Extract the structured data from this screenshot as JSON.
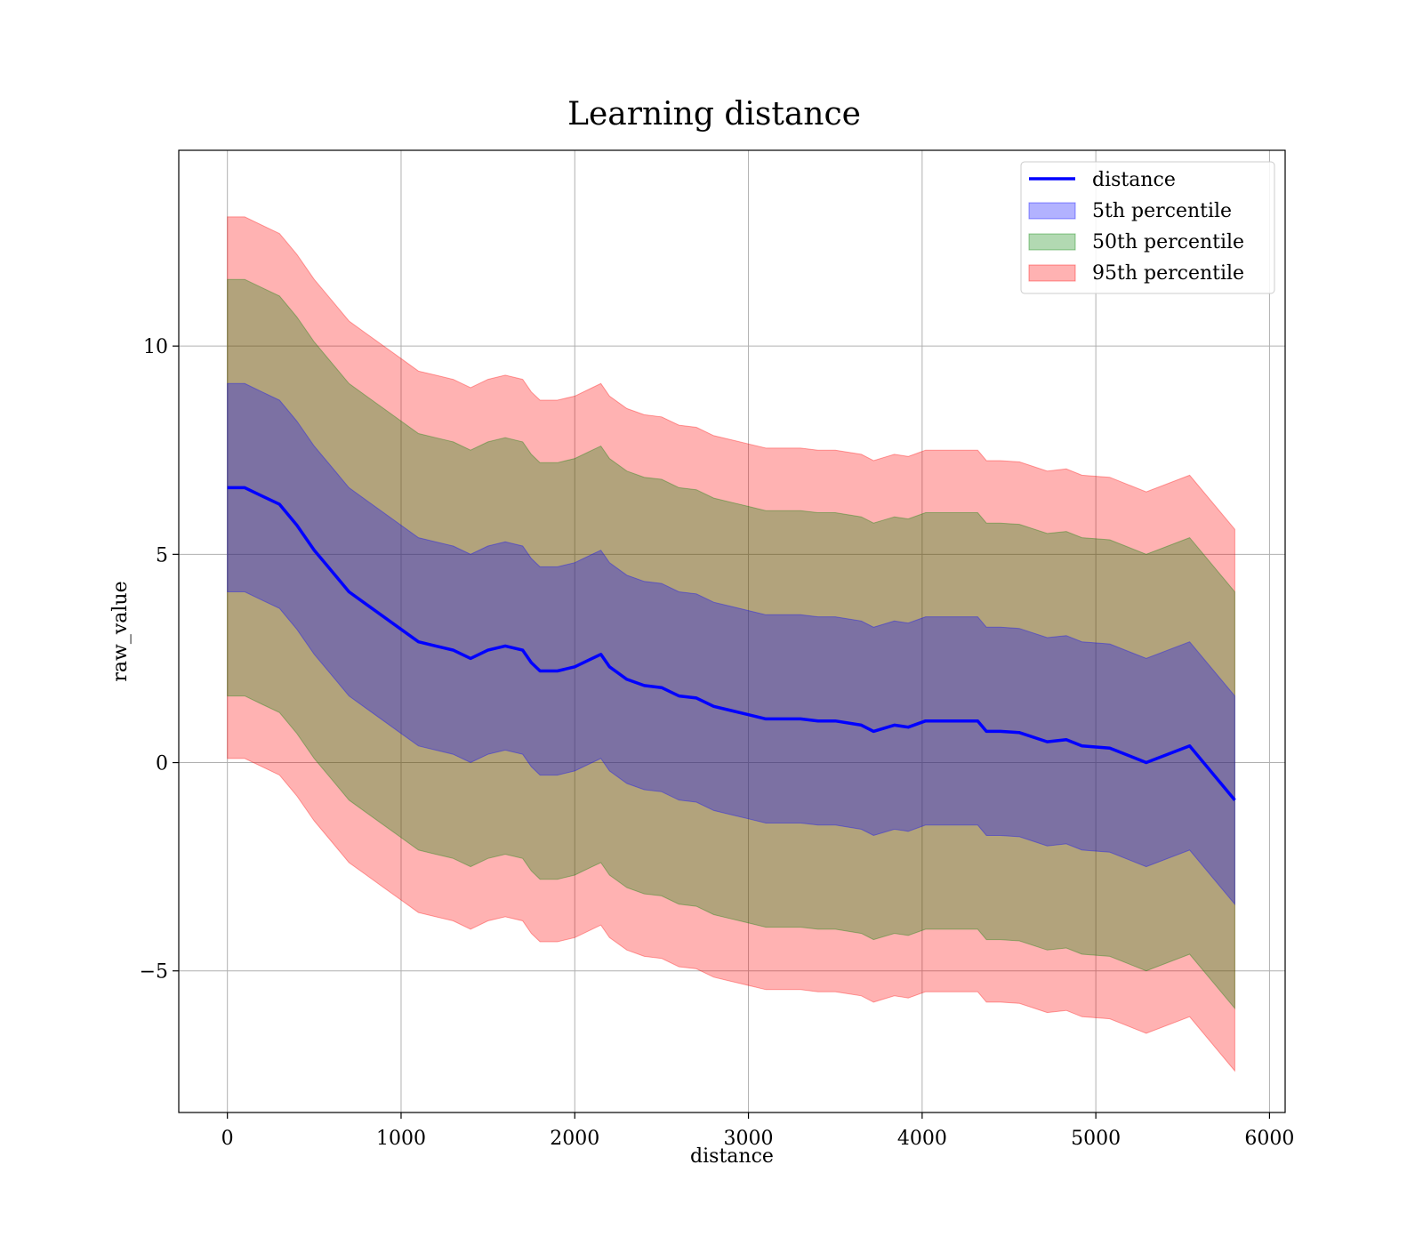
{
  "chart_data": {
    "type": "line",
    "title": "Learning distance",
    "xlabel": "distance",
    "ylabel": "raw_value",
    "xlim": [
      -280,
      6090
    ],
    "ylim": [
      -8.4,
      14.7
    ],
    "xticks": [
      0,
      1000,
      2000,
      3000,
      4000,
      5000,
      6000
    ],
    "xtick_labels": [
      "0",
      "1000",
      "2000",
      "3000",
      "4000",
      "5000",
      "6000"
    ],
    "yticks": [
      -5,
      0,
      5,
      10
    ],
    "ytick_labels": [
      "−5",
      "0",
      "5",
      "10"
    ],
    "grid": true,
    "legend_position": "top-right",
    "colors": {
      "line": "#0000ff",
      "band_5th": "#0000ff",
      "band_50th": "#008000",
      "band_95th": "#ff0000",
      "grid": "#b0b0b0"
    },
    "x": [
      0,
      100,
      200,
      300,
      400,
      500,
      600,
      700,
      800,
      900,
      1000,
      1100,
      1200,
      1300,
      1400,
      1500,
      1600,
      1700,
      1750,
      1800,
      1900,
      2000,
      2100,
      2150,
      2200,
      2300,
      2400,
      2500,
      2600,
      2700,
      2800,
      2900,
      3000,
      3100,
      3200,
      3300,
      3400,
      3500,
      3650,
      3720,
      3840,
      3920,
      4020,
      4320,
      4370,
      4450,
      4560,
      4720,
      4830,
      4920,
      5080,
      5290,
      5540,
      5800
    ],
    "series": [
      {
        "name": "distance",
        "kind": "line",
        "values": [
          6.6,
          6.6,
          6.4,
          6.2,
          5.7,
          5.1,
          4.6,
          4.1,
          3.8,
          3.5,
          3.2,
          2.9,
          2.8,
          2.7,
          2.5,
          2.7,
          2.8,
          2.7,
          2.4,
          2.2,
          2.2,
          2.3,
          2.5,
          2.6,
          2.3,
          2.0,
          1.85,
          1.8,
          1.6,
          1.55,
          1.35,
          1.25,
          1.15,
          1.05,
          1.05,
          1.05,
          1.0,
          1.0,
          0.9,
          0.75,
          0.9,
          0.85,
          1.0,
          1.0,
          0.75,
          0.75,
          0.72,
          0.5,
          0.55,
          0.4,
          0.35,
          0.0,
          0.4,
          -0.9
        ]
      },
      {
        "name": "5th percentile",
        "kind": "band",
        "upper": [
          9.1,
          9.1,
          8.9,
          8.7,
          8.2,
          7.6,
          7.1,
          6.6,
          6.3,
          6.0,
          5.7,
          5.4,
          5.3,
          5.2,
          5.0,
          5.2,
          5.3,
          5.2,
          4.9,
          4.7,
          4.7,
          4.8,
          5.0,
          5.1,
          4.8,
          4.5,
          4.35,
          4.3,
          4.1,
          4.05,
          3.85,
          3.75,
          3.65,
          3.55,
          3.55,
          3.55,
          3.5,
          3.5,
          3.4,
          3.25,
          3.4,
          3.35,
          3.5,
          3.5,
          3.25,
          3.25,
          3.22,
          3.0,
          3.05,
          2.9,
          2.85,
          2.5,
          2.9,
          1.6
        ],
        "lower": [
          4.1,
          4.1,
          3.9,
          3.7,
          3.2,
          2.6,
          2.1,
          1.6,
          1.3,
          1.0,
          0.7,
          0.4,
          0.3,
          0.2,
          0.0,
          0.2,
          0.3,
          0.2,
          -0.1,
          -0.3,
          -0.3,
          -0.2,
          0.0,
          0.1,
          -0.2,
          -0.5,
          -0.65,
          -0.7,
          -0.9,
          -0.95,
          -1.15,
          -1.25,
          -1.35,
          -1.45,
          -1.45,
          -1.45,
          -1.5,
          -1.5,
          -1.6,
          -1.75,
          -1.6,
          -1.65,
          -1.5,
          -1.5,
          -1.75,
          -1.75,
          -1.78,
          -2.0,
          -1.95,
          -2.1,
          -2.15,
          -2.5,
          -2.1,
          -3.4
        ]
      },
      {
        "name": "50th percentile",
        "kind": "band",
        "upper": [
          11.6,
          11.6,
          11.4,
          11.2,
          10.7,
          10.1,
          9.6,
          9.1,
          8.8,
          8.5,
          8.2,
          7.9,
          7.8,
          7.7,
          7.5,
          7.7,
          7.8,
          7.7,
          7.4,
          7.2,
          7.2,
          7.3,
          7.5,
          7.6,
          7.3,
          7.0,
          6.85,
          6.8,
          6.6,
          6.55,
          6.35,
          6.25,
          6.15,
          6.05,
          6.05,
          6.05,
          6.0,
          6.0,
          5.9,
          5.75,
          5.9,
          5.85,
          6.0,
          6.0,
          5.75,
          5.75,
          5.72,
          5.5,
          5.55,
          5.4,
          5.35,
          5.0,
          5.4,
          4.1
        ],
        "lower": [
          1.6,
          1.6,
          1.4,
          1.2,
          0.7,
          0.1,
          -0.4,
          -0.9,
          -1.2,
          -1.5,
          -1.8,
          -2.1,
          -2.2,
          -2.3,
          -2.5,
          -2.3,
          -2.2,
          -2.3,
          -2.6,
          -2.8,
          -2.8,
          -2.7,
          -2.5,
          -2.4,
          -2.7,
          -3.0,
          -3.15,
          -3.2,
          -3.4,
          -3.45,
          -3.65,
          -3.75,
          -3.85,
          -3.95,
          -3.95,
          -3.95,
          -4.0,
          -4.0,
          -4.1,
          -4.25,
          -4.1,
          -4.15,
          -4.0,
          -4.0,
          -4.25,
          -4.25,
          -4.28,
          -4.5,
          -4.45,
          -4.6,
          -4.65,
          -5.0,
          -4.6,
          -5.9
        ]
      },
      {
        "name": "95th percentile",
        "kind": "band",
        "upper": [
          13.1,
          13.1,
          12.9,
          12.7,
          12.2,
          11.6,
          11.1,
          10.6,
          10.3,
          10.0,
          9.7,
          9.4,
          9.3,
          9.2,
          9.0,
          9.2,
          9.3,
          9.2,
          8.9,
          8.7,
          8.7,
          8.8,
          9.0,
          9.1,
          8.8,
          8.5,
          8.35,
          8.3,
          8.1,
          8.05,
          7.85,
          7.75,
          7.65,
          7.55,
          7.55,
          7.55,
          7.5,
          7.5,
          7.4,
          7.25,
          7.4,
          7.35,
          7.5,
          7.5,
          7.25,
          7.25,
          7.22,
          7.0,
          7.05,
          6.9,
          6.85,
          6.5,
          6.9,
          5.6
        ],
        "lower": [
          0.1,
          0.1,
          -0.1,
          -0.3,
          -0.8,
          -1.4,
          -1.9,
          -2.4,
          -2.7,
          -3.0,
          -3.3,
          -3.6,
          -3.7,
          -3.8,
          -4.0,
          -3.8,
          -3.7,
          -3.8,
          -4.1,
          -4.3,
          -4.3,
          -4.2,
          -4.0,
          -3.9,
          -4.2,
          -4.5,
          -4.65,
          -4.7,
          -4.9,
          -4.95,
          -5.15,
          -5.25,
          -5.35,
          -5.45,
          -5.45,
          -5.45,
          -5.5,
          -5.5,
          -5.6,
          -5.75,
          -5.6,
          -5.65,
          -5.5,
          -5.5,
          -5.75,
          -5.75,
          -5.78,
          -6.0,
          -5.95,
          -6.1,
          -6.15,
          -6.5,
          -6.1,
          -7.4
        ]
      }
    ],
    "legend": [
      {
        "label": "distance",
        "kind": "line",
        "color": "#0000ff"
      },
      {
        "label": "5th percentile",
        "kind": "patch",
        "color": "#0000ff"
      },
      {
        "label": "50th percentile",
        "kind": "patch",
        "color": "#008000"
      },
      {
        "label": "95th percentile",
        "kind": "patch",
        "color": "#ff0000"
      }
    ]
  }
}
